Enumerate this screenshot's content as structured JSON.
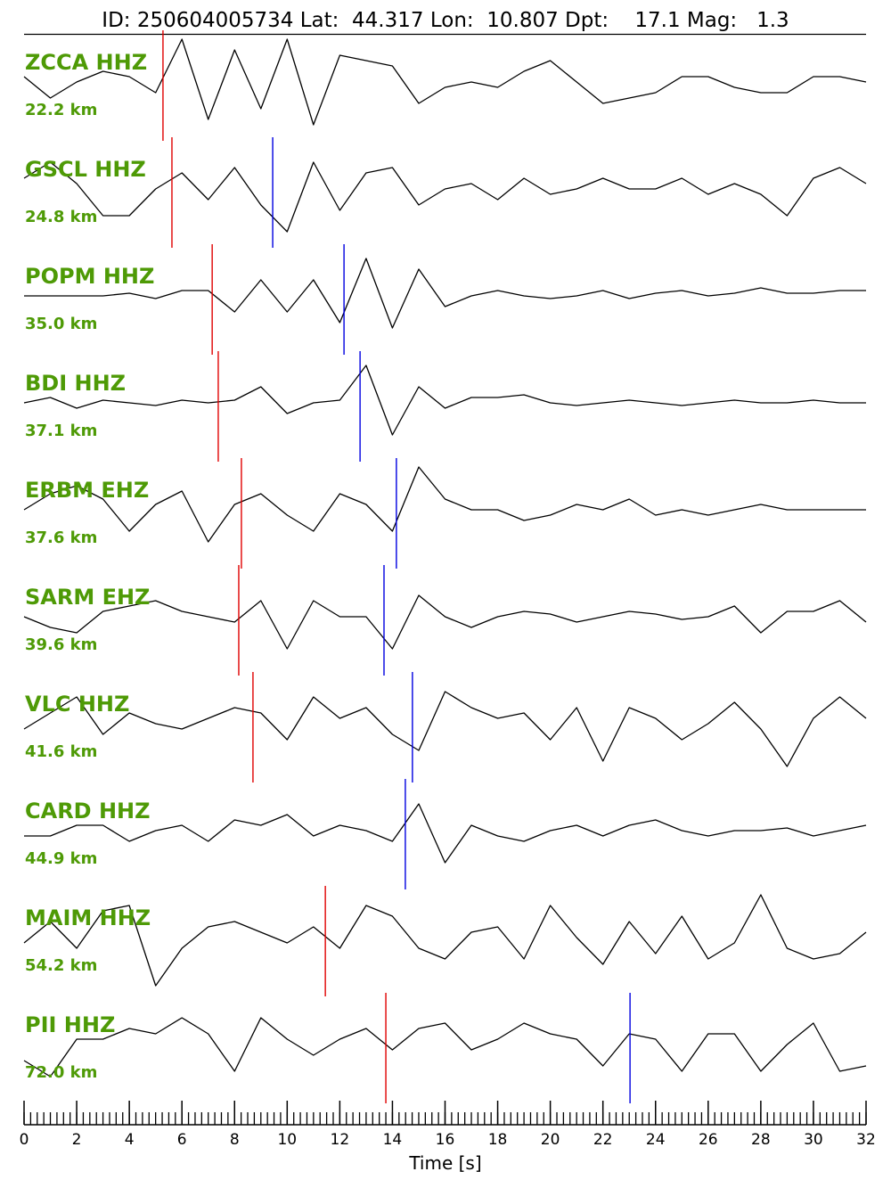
{
  "chart_data": {
    "type": "seismogram",
    "title": "ID: 250604005734 Lat:  44.317 Lon:  10.807 Dpt:    17.1 Mag:   1.3",
    "x_label": "Time [s]",
    "xlim": [
      0,
      32
    ],
    "xticks": [
      0,
      2,
      4,
      6,
      8,
      10,
      12,
      14,
      16,
      18,
      20,
      22,
      24,
      26,
      28,
      30,
      32
    ],
    "minor_tick_step": 0.25,
    "ylim": [
      -1,
      1
    ],
    "label_color": "#4e9a06",
    "trace_color": "#000000",
    "p_pick_color": "#e00000",
    "s_pick_color": "#0000e0",
    "x": [
      0,
      1,
      2,
      3,
      4,
      5,
      6,
      7,
      8,
      9,
      10,
      11,
      12,
      13,
      14,
      15,
      16,
      17,
      18,
      19,
      20,
      21,
      22,
      23,
      24,
      25,
      26,
      27,
      28,
      29,
      30,
      31,
      32
    ],
    "traces": [
      {
        "name": "ZCCA HHZ",
        "distance": "22.2 km",
        "p_pick": 5.28,
        "s_pick": null,
        "amplitude": [
          0.1,
          -0.3,
          0,
          0.2,
          0.1,
          -0.2,
          0.8,
          -0.7,
          0.6,
          -0.5,
          0.8,
          -0.8,
          0.5,
          0.4,
          0.3,
          -0.4,
          -0.1,
          0,
          -0.1,
          0.2,
          0.4,
          0,
          -0.4,
          -0.3,
          -0.2,
          0.1,
          0.1,
          -0.1,
          -0.2,
          -0.2,
          0.1,
          0.1,
          0
        ]
      },
      {
        "name": "GSCL HHZ",
        "distance": "24.8 km",
        "p_pick": 5.62,
        "s_pick": 9.45,
        "amplitude": [
          0.2,
          0.5,
          0.1,
          -0.5,
          -0.5,
          0,
          0.3,
          -0.2,
          0.4,
          -0.3,
          -0.8,
          0.5,
          -0.4,
          0.3,
          0.4,
          -0.3,
          0,
          0.1,
          -0.2,
          0.2,
          -0.1,
          0,
          0.2,
          0,
          0,
          0.2,
          -0.1,
          0.1,
          -0.1,
          -0.5,
          0.2,
          0.4,
          0.1
        ]
      },
      {
        "name": "POPM HHZ",
        "distance": "35.0 km",
        "p_pick": 7.15,
        "s_pick": 12.16,
        "amplitude": [
          0,
          0,
          0,
          0,
          0.05,
          -0.05,
          0.1,
          0.1,
          -0.3,
          0.3,
          -0.3,
          0.3,
          -0.5,
          0.7,
          -0.6,
          0.5,
          -0.2,
          0,
          0.1,
          0,
          -0.05,
          0,
          0.1,
          -0.05,
          0.05,
          0.1,
          0,
          0.05,
          0.15,
          0.05,
          0.05,
          0.1,
          0.1
        ]
      },
      {
        "name": "BDI HHZ",
        "distance": "37.1 km",
        "p_pick": 7.38,
        "s_pick": 12.77,
        "amplitude": [
          0,
          0.1,
          -0.1,
          0.05,
          0,
          -0.05,
          0.05,
          0,
          0.05,
          0.3,
          -0.2,
          0,
          0.05,
          0.7,
          -0.6,
          0.3,
          -0.1,
          0.1,
          0.1,
          0.15,
          0,
          -0.05,
          0,
          0.05,
          0,
          -0.05,
          0,
          0.05,
          0,
          0,
          0.05,
          0,
          0
        ]
      },
      {
        "name": "ERBM EHZ",
        "distance": "37.6 km",
        "p_pick": 8.26,
        "s_pick": 14.15,
        "amplitude": [
          0,
          0.3,
          0.45,
          0.2,
          -0.4,
          0.1,
          0.35,
          -0.6,
          0.1,
          0.3,
          -0.1,
          -0.4,
          0.3,
          0.1,
          -0.4,
          0.8,
          0.2,
          0,
          0,
          -0.2,
          -0.1,
          0.1,
          0,
          0.2,
          -0.1,
          0,
          -0.1,
          0,
          0.1,
          0,
          0,
          0,
          0
        ]
      },
      {
        "name": "SARM EHZ",
        "distance": "39.6 km",
        "p_pick": 8.16,
        "s_pick": 13.68,
        "amplitude": [
          0,
          -0.2,
          -0.3,
          0.1,
          0.2,
          0.3,
          0.1,
          0,
          -0.1,
          0.3,
          -0.6,
          0.3,
          0,
          0,
          -0.6,
          0.4,
          0,
          -0.2,
          0,
          0.1,
          0.05,
          -0.1,
          0,
          0.1,
          0.05,
          -0.05,
          0,
          0.2,
          -0.3,
          0.1,
          0.1,
          0.3,
          -0.1
        ]
      },
      {
        "name": "VLC HHZ",
        "distance": "41.6 km",
        "p_pick": 8.7,
        "s_pick": 14.76,
        "amplitude": [
          -0.1,
          0.2,
          0.5,
          -0.2,
          0.2,
          0,
          -0.1,
          0.1,
          0.3,
          0.2,
          -0.3,
          0.5,
          0.1,
          0.3,
          -0.2,
          -0.5,
          0.6,
          0.3,
          0.1,
          0.2,
          -0.3,
          0.3,
          -0.7,
          0.3,
          0.1,
          -0.3,
          0,
          0.4,
          -0.1,
          -0.8,
          0.1,
          0.5,
          0.1
        ]
      },
      {
        "name": "CARD HHZ",
        "distance": "44.9 km",
        "p_pick": null,
        "s_pick": 14.49,
        "amplitude": [
          -0.1,
          -0.1,
          0.1,
          0.1,
          -0.2,
          0,
          0.1,
          -0.2,
          0.2,
          0.1,
          0.3,
          -0.1,
          0.1,
          0,
          -0.2,
          0.5,
          -0.6,
          0.1,
          -0.1,
          -0.2,
          0,
          0.1,
          -0.1,
          0.1,
          0.2,
          0,
          -0.1,
          0,
          0,
          0.05,
          -0.1,
          0,
          0.1
        ]
      },
      {
        "name": "MAIM HHZ",
        "distance": "54.2 km",
        "p_pick": 11.45,
        "s_pick": null,
        "amplitude": [
          -0.1,
          0.3,
          -0.2,
          0.5,
          0.6,
          -0.9,
          -0.2,
          0.2,
          0.3,
          0.1,
          -0.1,
          0.2,
          -0.2,
          0.6,
          0.4,
          -0.2,
          -0.4,
          0.1,
          0.2,
          -0.4,
          0.6,
          0,
          -0.5,
          0.3,
          -0.3,
          0.4,
          -0.4,
          -0.1,
          0.8,
          -0.2,
          -0.4,
          -0.3,
          0.1
        ]
      },
      {
        "name": "PII HHZ",
        "distance": "72.0 km",
        "p_pick": 13.75,
        "s_pick": 23.03,
        "amplitude": [
          -0.3,
          -0.6,
          0.1,
          0.1,
          0.3,
          0.2,
          0.5,
          0.2,
          -0.5,
          0.5,
          0.1,
          -0.2,
          0.1,
          0.3,
          -0.1,
          0.3,
          0.4,
          -0.1,
          0.1,
          0.4,
          0.2,
          0.1,
          -0.4,
          0.2,
          0.1,
          -0.5,
          0.2,
          0.2,
          -0.5,
          0,
          0.4,
          -0.5,
          -0.4
        ]
      }
    ]
  }
}
